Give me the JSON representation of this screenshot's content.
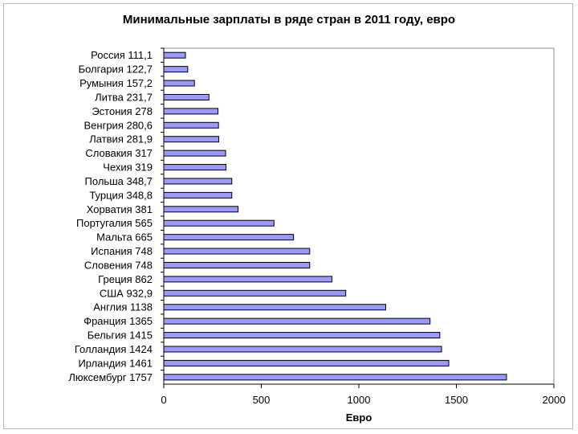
{
  "chart_data": {
    "type": "bar",
    "orientation": "horizontal",
    "title": "Минимальные зарплаты в ряде стран в 2011 году, евро",
    "xlabel": "Евро",
    "ylabel": "",
    "xlim": [
      0,
      2000
    ],
    "xticks": [
      0,
      500,
      1000,
      1500,
      2000
    ],
    "categories": [
      "Россия 111,1",
      "Болгария 122,7",
      "Румыния 157,2",
      "Литва 231,7",
      "Эстония 278",
      "Венгрия 280,6",
      "Латвия 281,9",
      "Словакия 317",
      "Чехия 319",
      "Польша 348,7",
      "Турция 348,8",
      "Хорватия 381",
      "Португалия 565",
      "Мальта 665",
      "Испания 748",
      "Словения 748",
      "Греция 862",
      "США 932,9",
      "Англия 1138",
      "Франция 1365",
      "Бельгия 1415",
      "Голландия 1424",
      "Ирландия 1461",
      "Люксембург 1757"
    ],
    "values": [
      111.1,
      122.7,
      157.2,
      231.7,
      278,
      280.6,
      281.9,
      317,
      319,
      348.7,
      348.8,
      381,
      565,
      665,
      748,
      748,
      862,
      932.9,
      1138,
      1365,
      1415,
      1424,
      1461,
      1757
    ],
    "bar_color": "#9999ff",
    "bar_edge_color": "#000000",
    "grid": false
  }
}
